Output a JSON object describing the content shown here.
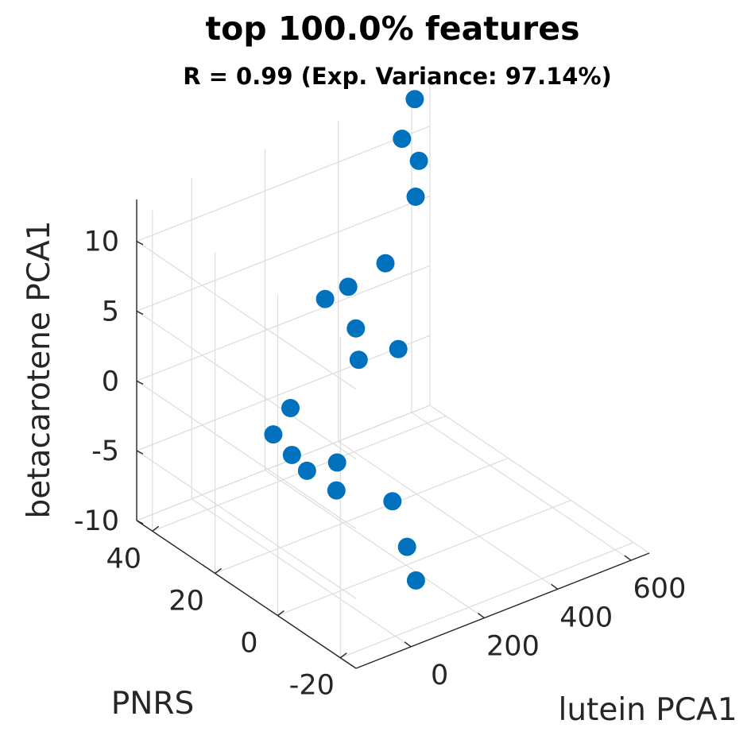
{
  "chart_data": {
    "type": "scatter",
    "title": "top 100.0% features",
    "subtitle": "R = 0.99 (Exp. Variance: 97.14%)",
    "xlabel": "lutein PCA1",
    "ylabel": "PNRS",
    "zlabel": "betacarotene PCA1",
    "x_ticks": [
      "0",
      "200",
      "400",
      "600"
    ],
    "y_ticks": [
      "-20",
      "0",
      "20",
      "40"
    ],
    "z_ticks": [
      "-10",
      "-5",
      "0",
      "5",
      "10"
    ],
    "xlim": [
      -150,
      650
    ],
    "ylim": [
      -25,
      45
    ],
    "zlim": [
      -10,
      13
    ],
    "grid": true,
    "marker_color": "#0072BD",
    "points": [
      {
        "x": 650,
        "y": 45,
        "z": 20.5
      },
      {
        "x": 600,
        "y": 44,
        "z": 12.6
      },
      {
        "x": 548,
        "y": 42,
        "z": 10.6
      },
      {
        "x": 560,
        "y": 38,
        "z": 9.5
      },
      {
        "x": 534,
        "y": 36,
        "z": 7.5
      },
      {
        "x": 426,
        "y": 33,
        "z": 4.3
      },
      {
        "x": 316,
        "y": 32,
        "z": 3.9
      },
      {
        "x": 270,
        "y": 34,
        "z": 3.2
      },
      {
        "x": 294,
        "y": 27,
        "z": 1.9
      },
      {
        "x": 350,
        "y": 20,
        "z": 0.9
      },
      {
        "x": 276,
        "y": 24,
        "z": 0.3
      },
      {
        "x": 167,
        "y": 33,
        "z": -3.4
      },
      {
        "x": 120,
        "y": 33,
        "z": -4.8
      },
      {
        "x": 128,
        "y": 28,
        "z": -5.6
      },
      {
        "x": 183,
        "y": 20,
        "z": -5.5
      },
      {
        "x": 135,
        "y": 24,
        "z": -6.2
      },
      {
        "x": 164,
        "y": 18,
        "z": -7.0
      },
      {
        "x": 240,
        "y": 9,
        "z": -7.2
      },
      {
        "x": 220,
        "y": 2,
        "z": -9.2
      },
      {
        "x": 210,
        "y": -2,
        "z": -10.9
      }
    ]
  }
}
